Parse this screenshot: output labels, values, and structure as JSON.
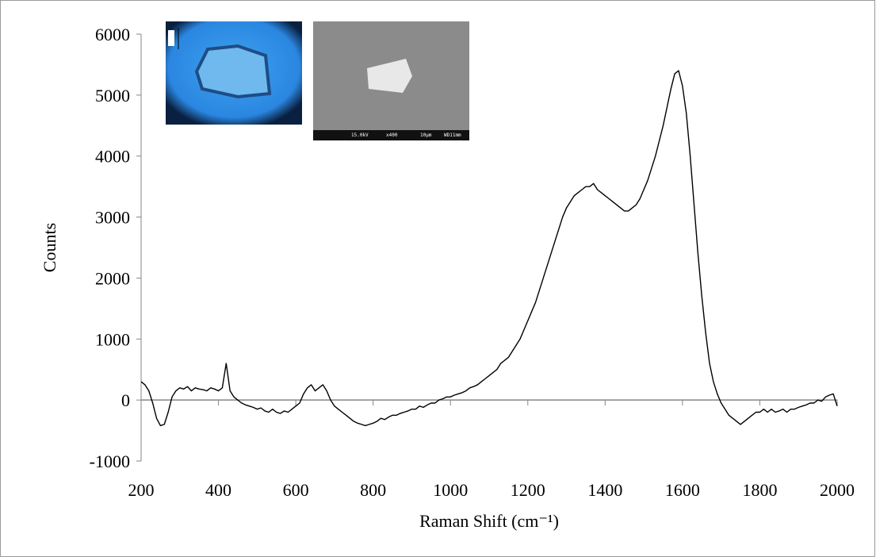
{
  "chart_data": {
    "type": "line",
    "xlabel": "Raman Shift (cm⁻¹)",
    "ylabel": "Counts",
    "annotations": [
      "15.0kV",
      "x400",
      "10µm",
      "WD11mm"
    ],
    "xlim": [
      200,
      2000
    ],
    "ylim": [
      -1000,
      6000
    ],
    "xticks": [
      200,
      400,
      600,
      800,
      1000,
      1200,
      1400,
      1600,
      1800,
      2000
    ],
    "yticks": [
      -1000,
      0,
      1000,
      2000,
      3000,
      4000,
      5000,
      6000
    ],
    "color": "#000000",
    "x": [
      200,
      210,
      220,
      230,
      240,
      250,
      260,
      270,
      280,
      290,
      300,
      310,
      320,
      330,
      340,
      350,
      360,
      370,
      380,
      390,
      400,
      410,
      420,
      430,
      440,
      450,
      460,
      470,
      480,
      490,
      500,
      510,
      520,
      530,
      540,
      550,
      560,
      570,
      580,
      590,
      600,
      610,
      620,
      630,
      640,
      650,
      660,
      670,
      680,
      690,
      700,
      710,
      720,
      730,
      740,
      750,
      760,
      770,
      780,
      790,
      800,
      810,
      820,
      830,
      840,
      850,
      860,
      870,
      880,
      890,
      900,
      910,
      920,
      930,
      940,
      950,
      960,
      970,
      980,
      990,
      1000,
      1010,
      1020,
      1030,
      1040,
      1050,
      1060,
      1070,
      1080,
      1090,
      1100,
      1110,
      1120,
      1130,
      1140,
      1150,
      1160,
      1170,
      1180,
      1190,
      1200,
      1210,
      1220,
      1230,
      1240,
      1250,
      1260,
      1270,
      1280,
      1290,
      1300,
      1310,
      1320,
      1330,
      1340,
      1350,
      1360,
      1370,
      1380,
      1390,
      1400,
      1410,
      1420,
      1430,
      1440,
      1450,
      1460,
      1470,
      1480,
      1490,
      1500,
      1510,
      1520,
      1530,
      1540,
      1550,
      1560,
      1570,
      1580,
      1590,
      1600,
      1610,
      1620,
      1630,
      1640,
      1650,
      1660,
      1670,
      1680,
      1690,
      1700,
      1710,
      1720,
      1730,
      1740,
      1750,
      1760,
      1770,
      1780,
      1790,
      1800,
      1810,
      1820,
      1830,
      1840,
      1850,
      1860,
      1870,
      1880,
      1890,
      1900,
      1910,
      1920,
      1930,
      1940,
      1950,
      1960,
      1970,
      1980,
      1990,
      2000
    ],
    "values": [
      300,
      250,
      150,
      -50,
      -300,
      -420,
      -400,
      -200,
      50,
      150,
      200,
      180,
      220,
      150,
      200,
      180,
      170,
      150,
      200,
      180,
      150,
      200,
      600,
      150,
      50,
      0,
      -50,
      -80,
      -100,
      -120,
      -150,
      -130,
      -180,
      -200,
      -150,
      -200,
      -220,
      -180,
      -200,
      -150,
      -100,
      -50,
      100,
      200,
      250,
      150,
      200,
      250,
      150,
      0,
      -100,
      -150,
      -200,
      -250,
      -300,
      -350,
      -380,
      -400,
      -420,
      -400,
      -380,
      -350,
      -300,
      -320,
      -280,
      -250,
      -250,
      -220,
      -200,
      -180,
      -150,
      -150,
      -100,
      -120,
      -80,
      -50,
      -50,
      0,
      20,
      50,
      50,
      80,
      100,
      120,
      150,
      200,
      220,
      250,
      300,
      350,
      400,
      450,
      500,
      600,
      650,
      700,
      800,
      900,
      1000,
      1150,
      1300,
      1450,
      1600,
      1800,
      2000,
      2200,
      2400,
      2600,
      2800,
      3000,
      3150,
      3250,
      3350,
      3400,
      3450,
      3500,
      3500,
      3550,
      3450,
      3400,
      3350,
      3300,
      3250,
      3200,
      3150,
      3100,
      3100,
      3150,
      3200,
      3300,
      3450,
      3600,
      3800,
      4000,
      4250,
      4500,
      4800,
      5100,
      5350,
      5400,
      5150,
      4700,
      4000,
      3200,
      2400,
      1700,
      1100,
      600,
      300,
      100,
      -50,
      -150,
      -250,
      -300,
      -350,
      -400,
      -350,
      -300,
      -250,
      -200,
      -200,
      -150,
      -200,
      -150,
      -200,
      -180,
      -150,
      -200,
      -150,
      -150,
      -120,
      -100,
      -80,
      -50,
      -50,
      0,
      -20,
      50,
      80,
      100,
      -100
    ]
  }
}
